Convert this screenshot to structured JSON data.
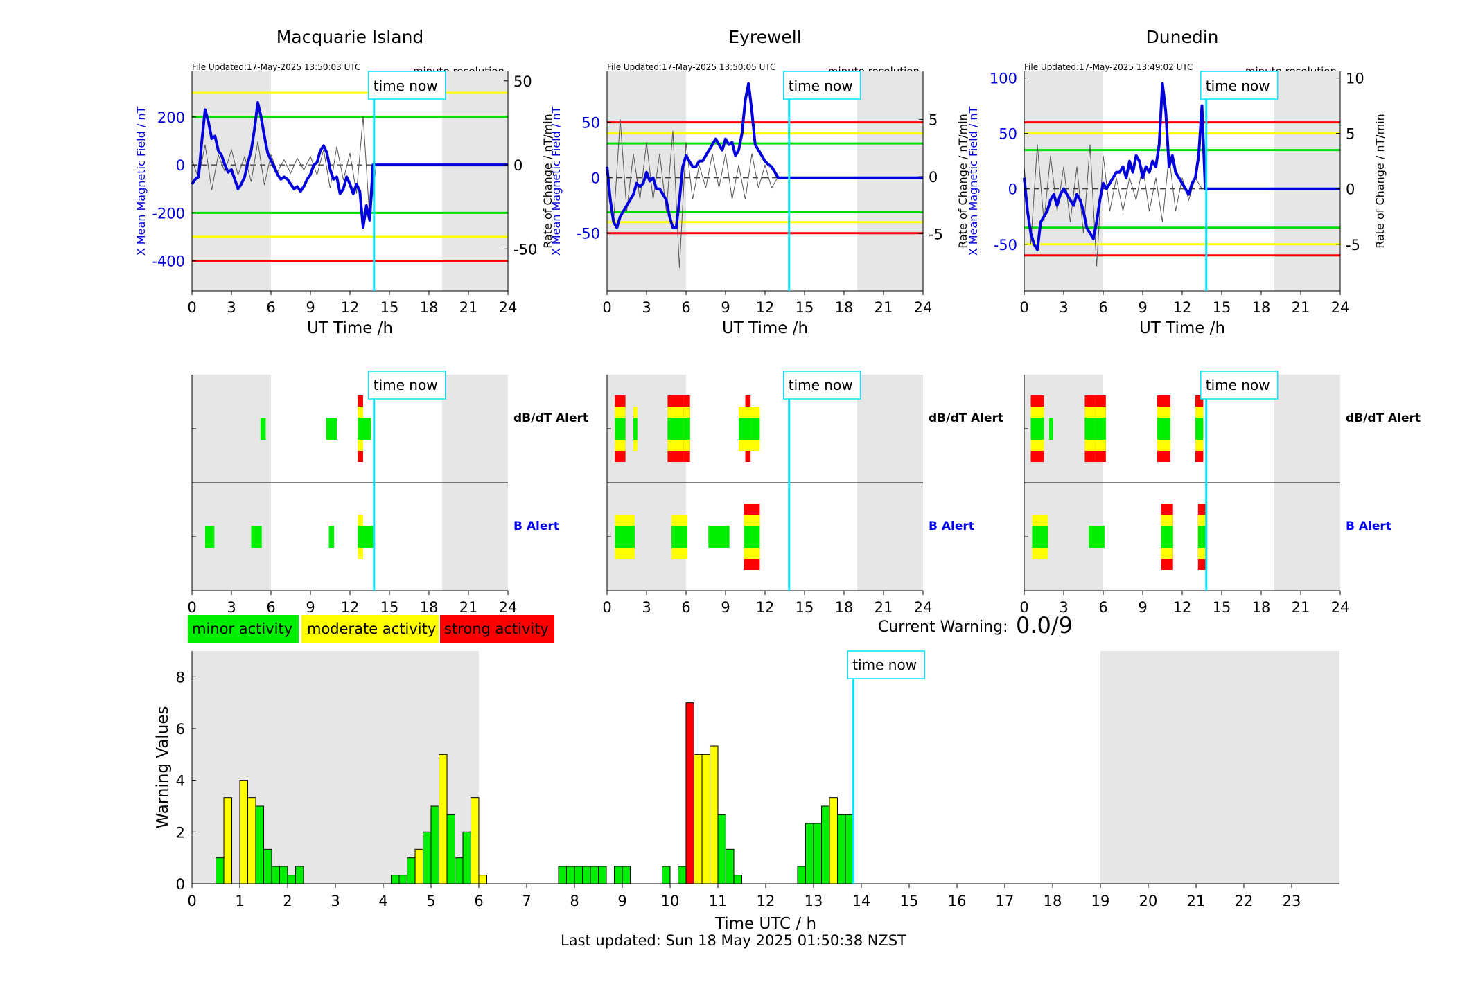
{
  "stations": [
    {
      "name": "Macquarie Island",
      "file_updated": "File Updated:17-May-2025 13:50:03 UTC",
      "resolution": "minute resolution",
      "y_left_label": "X Mean Magnetic Field / nT",
      "y_right_label": "Rate of Change / nT/min",
      "x_label": "UT Time /h",
      "y_left_range": [
        -525,
        390
      ],
      "y_right_range": [
        -75.0,
        55.7
      ],
      "y_left_ticks": [
        -400,
        -200,
        0,
        200
      ],
      "y_right_ticks": [
        -50,
        0,
        50
      ],
      "thresholds": [
        {
          "value": 300,
          "color": "#ffff00"
        },
        {
          "value": 200,
          "color": "#00dd00"
        },
        {
          "value": -200,
          "color": "#00dd00"
        },
        {
          "value": -300,
          "color": "#ffff00"
        },
        {
          "value": -400,
          "color": "#ff0000"
        }
      ],
      "field_x": [
        0,
        0.25,
        0.5,
        0.75,
        1,
        1.25,
        1.5,
        1.75,
        2,
        2.25,
        2.5,
        2.75,
        3,
        3.25,
        3.5,
        3.75,
        4,
        4.25,
        4.5,
        4.75,
        5,
        5.25,
        5.5,
        5.75,
        6,
        6.25,
        6.5,
        6.75,
        7,
        7.25,
        7.5,
        7.75,
        8,
        8.25,
        8.5,
        8.75,
        9,
        9.25,
        9.5,
        9.75,
        10,
        10.25,
        10.5,
        10.75,
        11,
        11.25,
        11.5,
        11.75,
        12,
        12.25,
        12.5,
        12.75,
        13,
        13.25,
        13.5,
        13.75,
        14,
        24
      ],
      "field_y": [
        -80,
        -60,
        -50,
        100,
        230,
        180,
        110,
        120,
        60,
        40,
        0,
        -30,
        -20,
        -60,
        -100,
        -80,
        -50,
        10,
        60,
        150,
        260,
        200,
        120,
        50,
        20,
        -10,
        -40,
        -60,
        -50,
        -60,
        -80,
        -100,
        -90,
        -110,
        -90,
        -60,
        -40,
        0,
        10,
        60,
        80,
        50,
        -20,
        -60,
        -50,
        -120,
        -100,
        -50,
        -80,
        -120,
        -80,
        -110,
        -260,
        -170,
        -230,
        0,
        0,
        0
      ],
      "roc_x": [
        0,
        0.5,
        1,
        1.5,
        2,
        2.5,
        3,
        3.5,
        4,
        4.5,
        5,
        5.5,
        6,
        6.5,
        7,
        7.5,
        8,
        8.5,
        9,
        9.5,
        10,
        10.5,
        11,
        11.5,
        12,
        12.5,
        13,
        13.5,
        14
      ],
      "roc_y": [
        3,
        -8,
        12,
        -15,
        6,
        -4,
        9,
        -6,
        5,
        -10,
        14,
        -12,
        6,
        -4,
        3,
        -5,
        4,
        -3,
        5,
        -6,
        9,
        -14,
        11,
        -9,
        7,
        -17,
        29,
        -32,
        0
      ],
      "alert_dbdt": [
        {
          "x0": 5.2,
          "x1": 5.6,
          "level": 1
        },
        {
          "x0": 10.2,
          "x1": 11.0,
          "level": 1
        },
        {
          "x0": 12.6,
          "x1": 13.0,
          "level": 3
        },
        {
          "x0": 13.0,
          "x1": 13.6,
          "level": 1
        }
      ],
      "alert_b": [
        {
          "x0": 1.0,
          "x1": 1.7,
          "level": 1
        },
        {
          "x0": 4.5,
          "x1": 5.3,
          "level": 1
        },
        {
          "x0": 10.4,
          "x1": 10.8,
          "level": 1
        },
        {
          "x0": 12.6,
          "x1": 13.0,
          "level": 2
        },
        {
          "x0": 13.0,
          "x1": 13.8,
          "level": 1
        }
      ]
    },
    {
      "name": "Eyrewell",
      "file_updated": "File Updated:17-May-2025 13:50:05 UTC",
      "resolution": "minute resolution",
      "y_left_label": "X Mean Magnetic Field / nT",
      "y_right_label": "Rate of Change / nT/min",
      "x_label": "UT Time /h",
      "y_left_range": [
        -102,
        96
      ],
      "y_right_range": [
        -10.0,
        9.2
      ],
      "y_left_ticks": [
        -50,
        0,
        50
      ],
      "y_right_ticks": [
        -5,
        0,
        5
      ],
      "thresholds": [
        {
          "value": 50,
          "color": "#ff0000"
        },
        {
          "value": 40,
          "color": "#ffff00"
        },
        {
          "value": 31,
          "color": "#00dd00"
        },
        {
          "value": -31,
          "color": "#00dd00"
        },
        {
          "value": -40,
          "color": "#ffff00"
        },
        {
          "value": -50,
          "color": "#ff0000"
        }
      ],
      "field_x": [
        0,
        0.25,
        0.5,
        0.75,
        1,
        1.25,
        1.5,
        1.75,
        2,
        2.25,
        2.5,
        2.75,
        3,
        3.25,
        3.5,
        3.75,
        4,
        4.25,
        4.5,
        4.75,
        5,
        5.25,
        5.5,
        5.75,
        6,
        6.25,
        6.5,
        6.75,
        7,
        7.25,
        7.5,
        7.75,
        8,
        8.25,
        8.5,
        8.75,
        9,
        9.25,
        9.5,
        9.75,
        10,
        10.25,
        10.5,
        10.75,
        11,
        11.25,
        11.5,
        11.75,
        12,
        12.25,
        12.5,
        12.75,
        13,
        13.25,
        13.5,
        24
      ],
      "field_y": [
        10,
        -20,
        -40,
        -45,
        -35,
        -30,
        -25,
        -20,
        -15,
        -5,
        -8,
        -5,
        5,
        -3,
        0,
        -10,
        -10,
        -15,
        -20,
        -35,
        -45,
        -45,
        -20,
        10,
        20,
        15,
        10,
        10,
        15,
        15,
        20,
        25,
        30,
        35,
        30,
        25,
        35,
        30,
        32,
        20,
        25,
        40,
        70,
        85,
        60,
        30,
        25,
        20,
        15,
        12,
        10,
        5,
        0,
        0,
        0,
        0
      ],
      "roc_x": [
        0,
        0.5,
        1,
        1.5,
        2,
        2.5,
        3,
        3.5,
        4,
        4.5,
        5,
        5.5,
        6,
        6.5,
        7,
        7.5,
        8,
        8.5,
        9,
        9.5,
        10,
        10.5,
        11,
        11.5,
        12,
        12.5,
        13
      ],
      "roc_y": [
        1,
        -4,
        5,
        -3,
        2,
        -2,
        3,
        -2,
        2,
        -3,
        4,
        -8,
        3,
        -2,
        1,
        -1,
        2,
        -1,
        2,
        -2,
        1,
        -2,
        2,
        -1,
        1,
        -1,
        0
      ],
      "alert_dbdt": [
        {
          "x0": 0.6,
          "x1": 1.4,
          "level": 3
        },
        {
          "x0": 2.0,
          "x1": 2.3,
          "level": 2
        },
        {
          "x0": 4.6,
          "x1": 5.8,
          "level": 3
        },
        {
          "x0": 5.8,
          "x1": 6.3,
          "level": 3
        },
        {
          "x0": 10.0,
          "x1": 10.5,
          "level": 2
        },
        {
          "x0": 10.5,
          "x1": 10.9,
          "level": 3
        },
        {
          "x0": 10.9,
          "x1": 11.6,
          "level": 2
        }
      ],
      "alert_b": [
        {
          "x0": 0.6,
          "x1": 2.1,
          "level": 2
        },
        {
          "x0": 4.9,
          "x1": 6.1,
          "level": 2
        },
        {
          "x0": 7.7,
          "x1": 9.3,
          "level": 1
        },
        {
          "x0": 10.4,
          "x1": 11.6,
          "level": 3
        }
      ]
    },
    {
      "name": "Dunedin",
      "file_updated": "File Updated:17-May-2025 13:49:02 UTC",
      "resolution": "minute resolution",
      "y_left_label": "X Mean Magnetic Field / nT",
      "y_right_label": "Rate of Change / nT/min",
      "x_label": "UT Time /h",
      "y_left_range": [
        -92,
        106
      ],
      "y_right_range": [
        -9.2,
        10.6
      ],
      "y_left_ticks": [
        -50,
        0,
        50,
        100
      ],
      "y_right_ticks": [
        -5,
        0,
        5,
        10
      ],
      "thresholds": [
        {
          "value": 60,
          "color": "#ff0000"
        },
        {
          "value": 50,
          "color": "#ffff00"
        },
        {
          "value": 35,
          "color": "#00dd00"
        },
        {
          "value": -35,
          "color": "#00dd00"
        },
        {
          "value": -50,
          "color": "#ffff00"
        },
        {
          "value": -60,
          "color": "#ff0000"
        }
      ],
      "field_x": [
        0,
        0.25,
        0.5,
        0.75,
        1,
        1.25,
        1.5,
        1.75,
        2,
        2.25,
        2.5,
        2.75,
        3,
        3.25,
        3.5,
        3.75,
        4,
        4.25,
        4.5,
        4.75,
        5,
        5.25,
        5.5,
        5.75,
        6,
        6.25,
        6.5,
        6.75,
        7,
        7.25,
        7.5,
        7.75,
        8,
        8.25,
        8.5,
        8.75,
        9,
        9.25,
        9.5,
        9.75,
        10,
        10.25,
        10.5,
        10.75,
        11,
        11.25,
        11.5,
        11.75,
        12,
        12.25,
        12.5,
        12.75,
        13,
        13.25,
        13.5,
        13.75,
        24
      ],
      "field_y": [
        10,
        -20,
        -40,
        -50,
        -55,
        -30,
        -25,
        -20,
        -10,
        -5,
        -15,
        -5,
        0,
        -5,
        -10,
        -15,
        -5,
        -10,
        -20,
        -35,
        -40,
        -45,
        -30,
        -10,
        5,
        0,
        5,
        10,
        15,
        15,
        20,
        10,
        25,
        15,
        30,
        25,
        10,
        20,
        15,
        25,
        20,
        40,
        95,
        70,
        20,
        30,
        15,
        10,
        5,
        0,
        -5,
        5,
        10,
        30,
        75,
        0,
        0
      ],
      "roc_x": [
        0,
        0.5,
        1,
        1.5,
        2,
        2.5,
        3,
        3.5,
        4,
        4.5,
        5,
        5.5,
        6,
        6.5,
        7,
        7.5,
        8,
        8.5,
        9,
        9.5,
        10,
        10.5,
        11,
        11.5,
        12,
        12.5,
        13,
        13.5
      ],
      "roc_y": [
        2,
        -5,
        4,
        -3,
        3,
        -2,
        2,
        -3,
        2,
        -4,
        4,
        -7,
        3,
        -2,
        1,
        -2,
        1,
        -1,
        2,
        -2,
        1,
        -3,
        3,
        -2,
        1,
        -1,
        1,
        0
      ],
      "alert_dbdt": [
        {
          "x0": 0.5,
          "x1": 1.5,
          "level": 3
        },
        {
          "x0": 1.9,
          "x1": 2.2,
          "level": 1
        },
        {
          "x0": 4.6,
          "x1": 5.4,
          "level": 3
        },
        {
          "x0": 5.4,
          "x1": 6.2,
          "level": 3
        },
        {
          "x0": 10.1,
          "x1": 11.1,
          "level": 3
        },
        {
          "x0": 13.0,
          "x1": 13.6,
          "level": 3
        }
      ],
      "alert_b": [
        {
          "x0": 0.6,
          "x1": 1.8,
          "level": 2
        },
        {
          "x0": 4.9,
          "x1": 6.1,
          "level": 1
        },
        {
          "x0": 10.4,
          "x1": 11.3,
          "level": 3
        },
        {
          "x0": 13.2,
          "x1": 13.9,
          "level": 3
        }
      ]
    }
  ],
  "panel_x_range": [
    0,
    24
  ],
  "panel_x_ticks": [
    0,
    3,
    6,
    9,
    12,
    15,
    18,
    21,
    24
  ],
  "night_shading": [
    [
      0,
      6
    ],
    [
      19,
      24
    ]
  ],
  "time_now_hour": 13.83,
  "time_now_label": "time now",
  "alert_row_labels": {
    "dbdt": "dB/dT Alert",
    "b": "B Alert"
  },
  "legend": {
    "minor": {
      "label": "minor activity",
      "color": "#00ee00"
    },
    "moderate": {
      "label": "moderate activity",
      "color": "#ffff00"
    },
    "strong": {
      "label": "strong activity",
      "color": "#ff0000"
    }
  },
  "current_warning": {
    "label": "Current Warning:",
    "value": "0.0/9"
  },
  "chart_data": {
    "type": "bar",
    "title": "",
    "xlabel": "Time UTC / h",
    "ylabel": "Warning Values",
    "xlim": [
      0,
      24
    ],
    "ylim": [
      0,
      9
    ],
    "x_ticks": [
      0,
      1,
      2,
      3,
      4,
      5,
      6,
      7,
      8,
      9,
      10,
      11,
      12,
      13,
      14,
      15,
      16,
      17,
      18,
      19,
      20,
      21,
      22,
      23
    ],
    "y_ticks": [
      0,
      2,
      4,
      6,
      8
    ],
    "bin_width_h": 0.1667,
    "night_shading": [
      [
        0,
        6
      ],
      [
        19,
        24
      ]
    ],
    "bars": [
      {
        "x": 0.5,
        "value": 1.0,
        "level": "minor"
      },
      {
        "x": 0.667,
        "value": 3.33,
        "level": "moderate"
      },
      {
        "x": 1.0,
        "value": 4.0,
        "level": "moderate"
      },
      {
        "x": 1.167,
        "value": 3.33,
        "level": "moderate"
      },
      {
        "x": 1.333,
        "value": 3.0,
        "level": "minor"
      },
      {
        "x": 1.5,
        "value": 1.33,
        "level": "minor"
      },
      {
        "x": 1.667,
        "value": 0.67,
        "level": "minor"
      },
      {
        "x": 1.833,
        "value": 0.67,
        "level": "minor"
      },
      {
        "x": 2.0,
        "value": 0.33,
        "level": "minor"
      },
      {
        "x": 2.167,
        "value": 0.67,
        "level": "minor"
      },
      {
        "x": 4.167,
        "value": 0.33,
        "level": "minor"
      },
      {
        "x": 4.333,
        "value": 0.33,
        "level": "minor"
      },
      {
        "x": 4.5,
        "value": 1.0,
        "level": "minor"
      },
      {
        "x": 4.667,
        "value": 1.33,
        "level": "moderate"
      },
      {
        "x": 4.833,
        "value": 2.0,
        "level": "minor"
      },
      {
        "x": 5.0,
        "value": 3.0,
        "level": "minor"
      },
      {
        "x": 5.167,
        "value": 5.0,
        "level": "moderate"
      },
      {
        "x": 5.333,
        "value": 2.67,
        "level": "minor"
      },
      {
        "x": 5.5,
        "value": 1.0,
        "level": "minor"
      },
      {
        "x": 5.667,
        "value": 2.0,
        "level": "minor"
      },
      {
        "x": 5.833,
        "value": 3.33,
        "level": "moderate"
      },
      {
        "x": 6.0,
        "value": 0.33,
        "level": "moderate"
      },
      {
        "x": 7.667,
        "value": 0.67,
        "level": "minor"
      },
      {
        "x": 7.833,
        "value": 0.67,
        "level": "minor"
      },
      {
        "x": 8.0,
        "value": 0.67,
        "level": "minor"
      },
      {
        "x": 8.167,
        "value": 0.67,
        "level": "minor"
      },
      {
        "x": 8.333,
        "value": 0.67,
        "level": "minor"
      },
      {
        "x": 8.5,
        "value": 0.67,
        "level": "minor"
      },
      {
        "x": 8.833,
        "value": 0.67,
        "level": "minor"
      },
      {
        "x": 9.0,
        "value": 0.67,
        "level": "minor"
      },
      {
        "x": 9.833,
        "value": 0.67,
        "level": "minor"
      },
      {
        "x": 10.167,
        "value": 0.67,
        "level": "minor"
      },
      {
        "x": 10.333,
        "value": 7.0,
        "level": "strong"
      },
      {
        "x": 10.5,
        "value": 5.0,
        "level": "moderate"
      },
      {
        "x": 10.667,
        "value": 5.0,
        "level": "moderate"
      },
      {
        "x": 10.833,
        "value": 5.33,
        "level": "moderate"
      },
      {
        "x": 11.0,
        "value": 2.67,
        "level": "minor"
      },
      {
        "x": 11.167,
        "value": 1.33,
        "level": "minor"
      },
      {
        "x": 11.333,
        "value": 0.33,
        "level": "minor"
      },
      {
        "x": 12.667,
        "value": 0.67,
        "level": "minor"
      },
      {
        "x": 12.833,
        "value": 2.33,
        "level": "minor"
      },
      {
        "x": 13.0,
        "value": 2.33,
        "level": "minor"
      },
      {
        "x": 13.167,
        "value": 3.0,
        "level": "minor"
      },
      {
        "x": 13.333,
        "value": 3.33,
        "level": "moderate"
      },
      {
        "x": 13.5,
        "value": 2.67,
        "level": "minor"
      },
      {
        "x": 13.667,
        "value": 2.67,
        "level": "minor"
      }
    ]
  },
  "footer": {
    "last_updated": "Last updated: Sun 18 May 2025 01:50:38 NZST"
  }
}
